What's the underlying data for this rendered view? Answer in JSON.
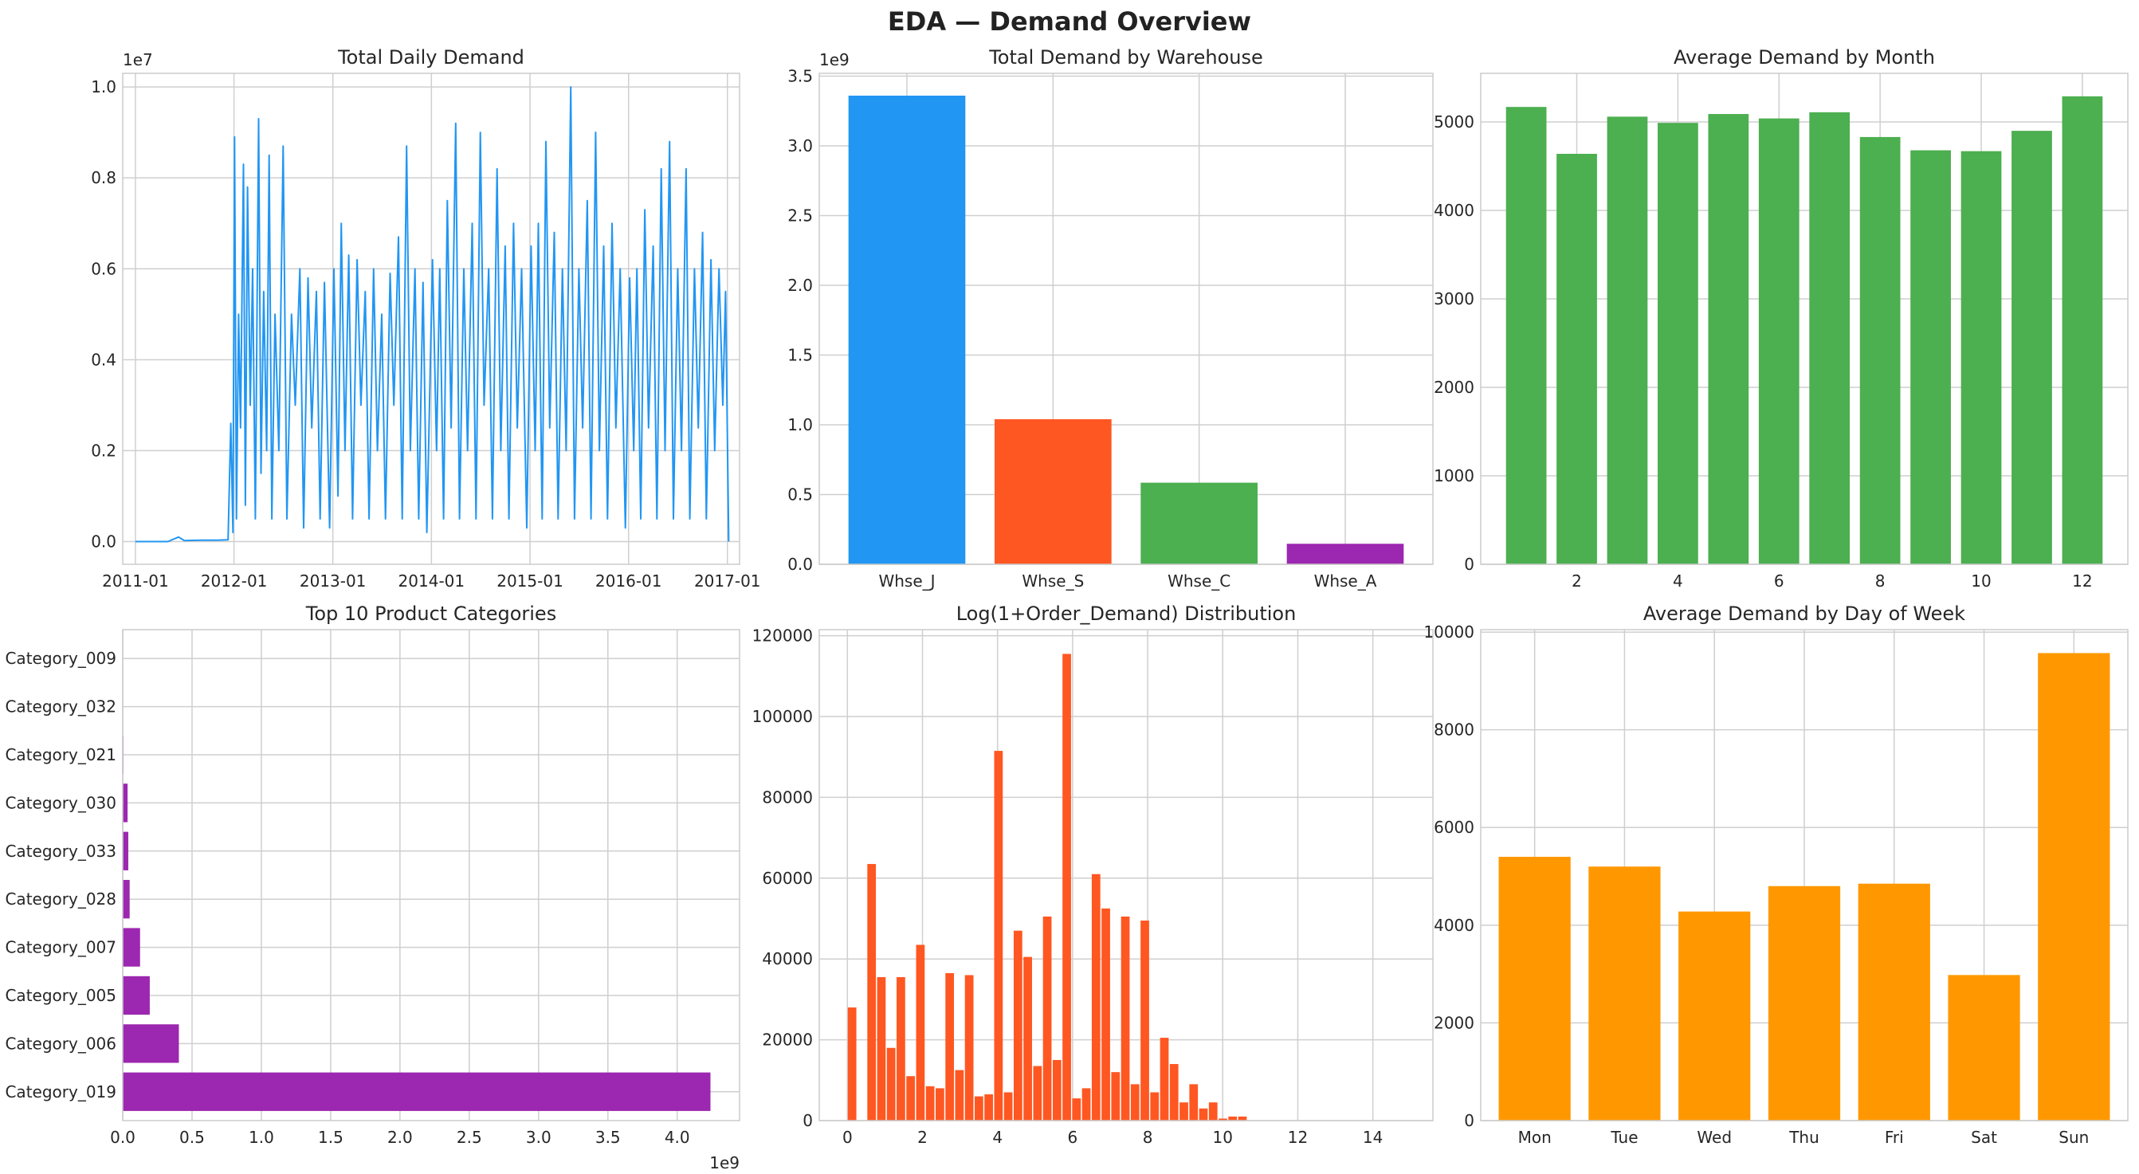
{
  "figure": {
    "title": "EDA — Demand Overview"
  },
  "chart_data": [
    {
      "type": "line",
      "title": "Total Daily Demand",
      "xlabel": "",
      "ylabel": "",
      "y_scale_label": "1e7",
      "y_scale": 10000000,
      "color": "#2196F3",
      "x_ticks": [
        "2011-01",
        "2012-01",
        "2013-01",
        "2014-01",
        "2015-01",
        "2016-01",
        "2017-01"
      ],
      "y_ticks": [
        0.0,
        0.2,
        0.4,
        0.6,
        0.8,
        1.0
      ],
      "y_tick_labels": [
        "0.0",
        "0.2",
        "0.4",
        "0.6",
        "0.8",
        "1.0"
      ],
      "xlim": [
        "2010-11-15",
        "2017-02-15"
      ],
      "ylim": [
        -0.05,
        1.03
      ],
      "series": [
        {
          "points": [
            [
              "2011-01-01",
              0.0
            ],
            [
              "2011-03-01",
              0.0
            ],
            [
              "2011-05-01",
              0.0
            ],
            [
              "2011-06-10",
              0.01
            ],
            [
              "2011-07-01",
              0.002
            ],
            [
              "2011-09-01",
              0.003
            ],
            [
              "2011-11-01",
              0.003
            ],
            [
              "2011-12-10",
              0.004
            ],
            [
              "2011-12-20",
              0.26
            ],
            [
              "2011-12-28",
              0.02
            ],
            [
              "2012-01-03",
              0.89
            ],
            [
              "2012-01-10",
              0.05
            ],
            [
              "2012-01-18",
              0.5
            ],
            [
              "2012-01-25",
              0.25
            ],
            [
              "2012-02-05",
              0.83
            ],
            [
              "2012-02-12",
              0.08
            ],
            [
              "2012-02-20",
              0.78
            ],
            [
              "2012-03-01",
              0.3
            ],
            [
              "2012-03-10",
              0.6
            ],
            [
              "2012-03-20",
              0.05
            ],
            [
              "2012-04-01",
              0.93
            ],
            [
              "2012-04-10",
              0.15
            ],
            [
              "2012-04-20",
              0.55
            ],
            [
              "2012-05-01",
              0.2
            ],
            [
              "2012-05-10",
              0.85
            ],
            [
              "2012-05-20",
              0.05
            ],
            [
              "2012-06-01",
              0.5
            ],
            [
              "2012-06-15",
              0.2
            ],
            [
              "2012-07-01",
              0.87
            ],
            [
              "2012-07-15",
              0.05
            ],
            [
              "2012-08-01",
              0.5
            ],
            [
              "2012-08-15",
              0.3
            ],
            [
              "2012-09-01",
              0.6
            ],
            [
              "2012-09-15",
              0.03
            ],
            [
              "2012-10-01",
              0.58
            ],
            [
              "2012-10-15",
              0.25
            ],
            [
              "2012-11-01",
              0.55
            ],
            [
              "2012-11-15",
              0.05
            ],
            [
              "2012-12-01",
              0.57
            ],
            [
              "2012-12-20",
              0.03
            ],
            [
              "2013-01-05",
              0.6
            ],
            [
              "2013-01-20",
              0.1
            ],
            [
              "2013-02-01",
              0.7
            ],
            [
              "2013-02-15",
              0.2
            ],
            [
              "2013-03-01",
              0.63
            ],
            [
              "2013-03-15",
              0.05
            ],
            [
              "2013-04-01",
              0.62
            ],
            [
              "2013-04-15",
              0.3
            ],
            [
              "2013-05-01",
              0.55
            ],
            [
              "2013-05-15",
              0.05
            ],
            [
              "2013-06-01",
              0.6
            ],
            [
              "2013-06-15",
              0.2
            ],
            [
              "2013-07-01",
              0.5
            ],
            [
              "2013-07-15",
              0.05
            ],
            [
              "2013-08-01",
              0.59
            ],
            [
              "2013-08-15",
              0.3
            ],
            [
              "2013-09-01",
              0.67
            ],
            [
              "2013-09-15",
              0.05
            ],
            [
              "2013-10-01",
              0.87
            ],
            [
              "2013-10-15",
              0.2
            ],
            [
              "2013-11-01",
              0.6
            ],
            [
              "2013-11-15",
              0.05
            ],
            [
              "2013-12-01",
              0.57
            ],
            [
              "2013-12-15",
              0.02
            ],
            [
              "2014-01-05",
              0.62
            ],
            [
              "2014-01-20",
              0.2
            ],
            [
              "2014-02-01",
              0.6
            ],
            [
              "2014-02-15",
              0.05
            ],
            [
              "2014-03-01",
              0.75
            ],
            [
              "2014-03-15",
              0.25
            ],
            [
              "2014-04-01",
              0.92
            ],
            [
              "2014-04-15",
              0.05
            ],
            [
              "2014-05-01",
              0.6
            ],
            [
              "2014-05-15",
              0.2
            ],
            [
              "2014-06-01",
              0.7
            ],
            [
              "2014-06-15",
              0.05
            ],
            [
              "2014-07-01",
              0.9
            ],
            [
              "2014-07-15",
              0.3
            ],
            [
              "2014-08-01",
              0.6
            ],
            [
              "2014-08-15",
              0.05
            ],
            [
              "2014-09-01",
              0.82
            ],
            [
              "2014-09-15",
              0.2
            ],
            [
              "2014-10-01",
              0.65
            ],
            [
              "2014-10-15",
              0.05
            ],
            [
              "2014-11-01",
              0.7
            ],
            [
              "2014-11-15",
              0.25
            ],
            [
              "2014-12-01",
              0.6
            ],
            [
              "2014-12-20",
              0.03
            ],
            [
              "2015-01-05",
              0.65
            ],
            [
              "2015-01-20",
              0.2
            ],
            [
              "2015-02-01",
              0.7
            ],
            [
              "2015-02-15",
              0.05
            ],
            [
              "2015-03-01",
              0.88
            ],
            [
              "2015-03-15",
              0.25
            ],
            [
              "2015-04-01",
              0.68
            ],
            [
              "2015-04-15",
              0.05
            ],
            [
              "2015-05-01",
              0.6
            ],
            [
              "2015-05-15",
              0.2
            ],
            [
              "2015-06-01",
              1.0
            ],
            [
              "2015-06-15",
              0.05
            ],
            [
              "2015-07-01",
              0.6
            ],
            [
              "2015-07-15",
              0.25
            ],
            [
              "2015-08-01",
              0.75
            ],
            [
              "2015-08-15",
              0.05
            ],
            [
              "2015-09-01",
              0.9
            ],
            [
              "2015-09-15",
              0.2
            ],
            [
              "2015-10-01",
              0.65
            ],
            [
              "2015-10-15",
              0.05
            ],
            [
              "2015-11-01",
              0.7
            ],
            [
              "2015-11-15",
              0.25
            ],
            [
              "2015-12-01",
              0.6
            ],
            [
              "2015-12-20",
              0.03
            ],
            [
              "2016-01-05",
              0.58
            ],
            [
              "2016-01-20",
              0.2
            ],
            [
              "2016-02-01",
              0.6
            ],
            [
              "2016-02-15",
              0.05
            ],
            [
              "2016-03-01",
              0.73
            ],
            [
              "2016-03-15",
              0.25
            ],
            [
              "2016-04-01",
              0.65
            ],
            [
              "2016-04-15",
              0.05
            ],
            [
              "2016-05-01",
              0.82
            ],
            [
              "2016-05-15",
              0.2
            ],
            [
              "2016-06-01",
              0.88
            ],
            [
              "2016-06-15",
              0.05
            ],
            [
              "2016-07-01",
              0.6
            ],
            [
              "2016-07-15",
              0.2
            ],
            [
              "2016-08-01",
              0.82
            ],
            [
              "2016-08-15",
              0.05
            ],
            [
              "2016-09-01",
              0.6
            ],
            [
              "2016-09-15",
              0.25
            ],
            [
              "2016-10-01",
              0.68
            ],
            [
              "2016-10-15",
              0.05
            ],
            [
              "2016-11-01",
              0.62
            ],
            [
              "2016-11-15",
              0.2
            ],
            [
              "2016-12-01",
              0.6
            ],
            [
              "2016-12-15",
              0.3
            ],
            [
              "2016-12-25",
              0.55
            ],
            [
              "2017-01-06",
              0.0
            ]
          ]
        }
      ]
    },
    {
      "type": "bar",
      "title": "Total Demand by Warehouse",
      "xlabel": "",
      "ylabel": "",
      "y_scale_label": "1e9",
      "y_scale": 1000000000,
      "categories": [
        "Whse_J",
        "Whse_S",
        "Whse_C",
        "Whse_A"
      ],
      "values": [
        3.36,
        1.04,
        0.585,
        0.147
      ],
      "colors": [
        "#2196F3",
        "#FF5722",
        "#4CAF50",
        "#9C27B0"
      ],
      "y_ticks": [
        0.0,
        0.5,
        1.0,
        1.5,
        2.0,
        2.5,
        3.0,
        3.5
      ],
      "y_tick_labels": [
        "0.0",
        "0.5",
        "1.0",
        "1.5",
        "2.0",
        "2.5",
        "3.0",
        "3.5"
      ],
      "ylim": [
        0,
        3.52
      ]
    },
    {
      "type": "bar",
      "title": "Average Demand by Month",
      "xlabel": "",
      "ylabel": "",
      "x": [
        1,
        2,
        3,
        4,
        5,
        6,
        7,
        8,
        9,
        10,
        11,
        12
      ],
      "values": [
        5170,
        4640,
        5060,
        4990,
        5090,
        5040,
        5110,
        4830,
        4680,
        4670,
        4900,
        5290
      ],
      "color": "#4CAF50",
      "x_ticks": [
        2,
        4,
        6,
        8,
        10,
        12
      ],
      "y_ticks": [
        0,
        1000,
        2000,
        3000,
        4000,
        5000
      ],
      "y_tick_labels": [
        "0",
        "1000",
        "2000",
        "3000",
        "4000",
        "5000"
      ],
      "xlim": [
        0.1,
        12.9
      ],
      "ylim": [
        0,
        5550
      ]
    },
    {
      "type": "bar",
      "orientation": "horizontal",
      "title": "Top 10 Product Categories",
      "xlabel": "",
      "ylabel": "",
      "x_scale_label": "1e9",
      "x_scale": 1000000000,
      "categories": [
        "Category_019",
        "Category_006",
        "Category_005",
        "Category_007",
        "Category_028",
        "Category_033",
        "Category_030",
        "Category_021",
        "Category_032",
        "Category_009"
      ],
      "values": [
        4.24,
        0.405,
        0.195,
        0.125,
        0.05,
        0.04,
        0.035,
        0.005,
        0.003,
        0.002
      ],
      "color": "#9C27B0",
      "x_ticks": [
        0.0,
        0.5,
        1.0,
        1.5,
        2.0,
        2.5,
        3.0,
        3.5,
        4.0
      ],
      "x_tick_labels": [
        "0.0",
        "0.5",
        "1.0",
        "1.5",
        "2.0",
        "2.5",
        "3.0",
        "3.5",
        "4.0"
      ],
      "xlim": [
        0,
        4.45
      ]
    },
    {
      "type": "bar",
      "title": "Log(1+Order_Demand) Distribution",
      "xlabel": "",
      "ylabel": "",
      "bin_width": 0.26,
      "bin_starts": [
        0.0,
        0.26,
        0.52,
        0.78,
        1.04,
        1.3,
        1.56,
        1.82,
        2.08,
        2.34,
        2.6,
        2.86,
        3.12,
        3.38,
        3.64,
        3.9,
        4.16,
        4.42,
        4.68,
        4.94,
        5.2,
        5.46,
        5.72,
        5.98,
        6.24,
        6.5,
        6.76,
        7.02,
        7.28,
        7.54,
        7.8,
        8.06,
        8.32,
        8.58,
        8.84,
        9.1,
        9.36,
        9.62,
        9.88,
        10.14,
        10.4,
        10.66,
        10.92,
        11.18,
        11.44,
        11.7,
        11.96,
        12.22
      ],
      "values": [
        28000,
        0,
        63500,
        35500,
        18000,
        35500,
        11000,
        43500,
        8500,
        8000,
        36500,
        12500,
        36000,
        6000,
        6500,
        91500,
        7000,
        47000,
        40500,
        13500,
        50500,
        15000,
        115500,
        5500,
        8000,
        61000,
        52500,
        12000,
        50500,
        9000,
        49500,
        7000,
        20500,
        14000,
        4500,
        9000,
        3000,
        4500,
        500,
        1000,
        1000,
        0,
        0,
        0,
        0,
        0,
        0,
        0
      ],
      "color": "#FF5722",
      "x_ticks": [
        0,
        2,
        4,
        6,
        8,
        10,
        12,
        14
      ],
      "y_ticks": [
        0,
        20000,
        40000,
        60000,
        80000,
        100000,
        120000
      ],
      "y_tick_labels": [
        "0",
        "20000",
        "40000",
        "60000",
        "80000",
        "100000",
        "120000"
      ],
      "xlim": [
        -0.75,
        15.6
      ],
      "ylim": [
        0,
        121500
      ]
    },
    {
      "type": "bar",
      "title": "Average Demand by Day of Week",
      "xlabel": "",
      "ylabel": "",
      "categories": [
        "Mon",
        "Tue",
        "Wed",
        "Thu",
        "Fri",
        "Sat",
        "Sun"
      ],
      "values": [
        5400,
        5200,
        4280,
        4800,
        4850,
        2980,
        9570
      ],
      "color": "#FF9800",
      "y_ticks": [
        0,
        2000,
        4000,
        6000,
        8000,
        10000
      ],
      "y_tick_labels": [
        "0",
        "2000",
        "4000",
        "6000",
        "8000",
        "10000"
      ],
      "ylim": [
        0,
        10050
      ]
    }
  ]
}
